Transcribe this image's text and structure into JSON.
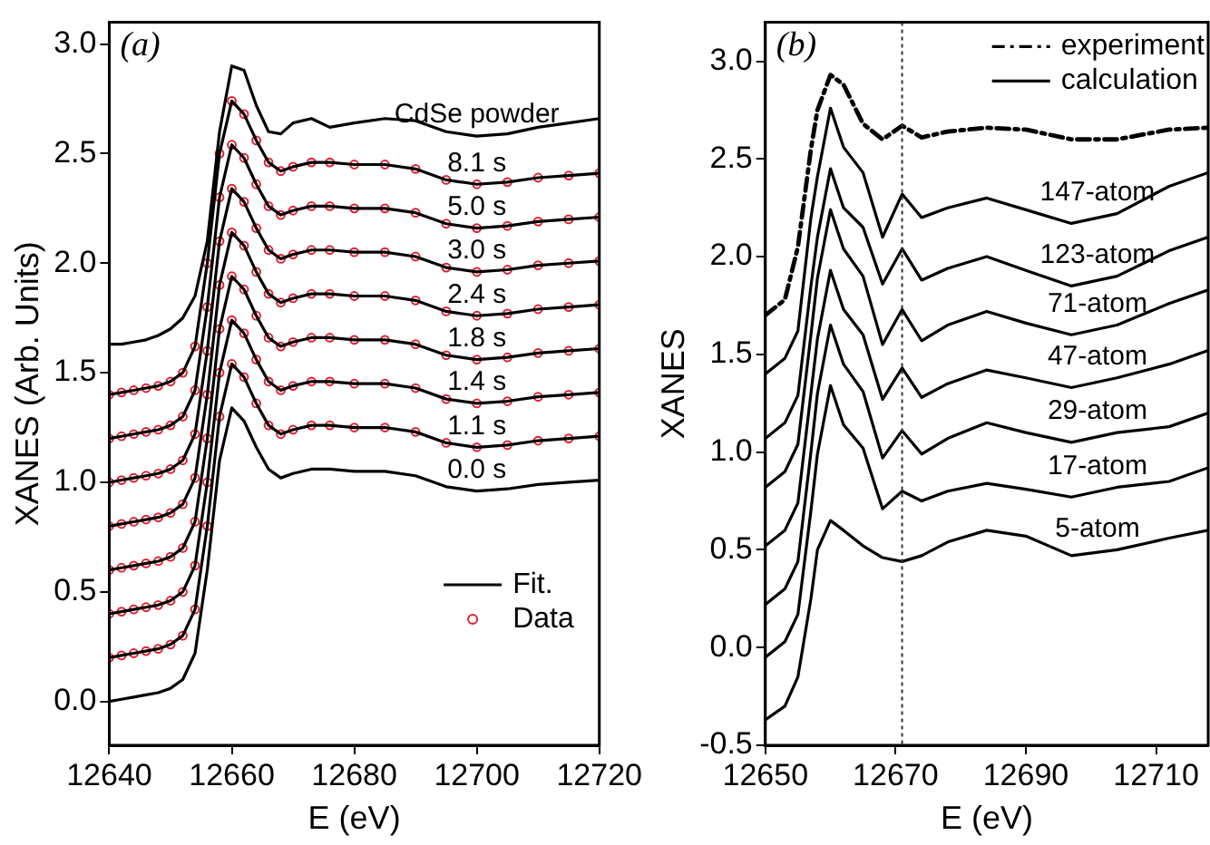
{
  "chart_data": [
    {
      "type": "line",
      "xlabel": "E (eV)",
      "ylabel": "XANES (Arb. Units)",
      "legend": "bottom right",
      "xlim": [
        12640,
        12720
      ],
      "xticks": [
        12640,
        12660,
        12680,
        12700,
        12720
      ],
      "ylim": [
        -0.2,
        3.1
      ],
      "yticks": [
        {
          "value": 0,
          "label": "0.0"
        },
        {
          "value": 0.5,
          "label": "0.5"
        },
        {
          "value": 1,
          "label": "1.0"
        },
        {
          "value": 1.5,
          "label": "1.5"
        },
        {
          "value": 2,
          "label": "2.0"
        },
        {
          "value": 2.5,
          "label": "2.5"
        },
        {
          "value": 3,
          "label": "3.0"
        }
      ],
      "x": [
        12640,
        12642,
        12644,
        12646,
        12648,
        12650,
        12652,
        12654,
        12656,
        12658,
        12660,
        12662,
        12664,
        12666,
        12668,
        12670,
        12673,
        12676,
        12680,
        12685,
        12690,
        12695,
        12700,
        12705,
        12710,
        12715,
        12720
      ],
      "series": [
        {
          "color": "#000000",
          "marker": "none",
          "values": [
            1.63,
            1.63,
            1.64,
            1.65,
            1.67,
            1.7,
            1.75,
            1.85,
            2.1,
            2.6,
            2.9,
            2.88,
            2.72,
            2.6,
            2.59,
            2.64,
            2.66,
            2.62,
            2.64,
            2.66,
            2.65,
            2.6,
            2.58,
            2.59,
            2.62,
            2.64,
            2.66
          ]
        },
        {
          "name": "Fit.",
          "color": "#000000",
          "marker": "none",
          "x": [
            12640,
            12642,
            12644,
            12646,
            12648,
            12650,
            12652,
            12654,
            12656,
            12658,
            12660,
            12662,
            12664,
            12666,
            12668,
            12670,
            12673,
            12676,
            12680,
            12685,
            12690,
            12695,
            12700,
            12705,
            12710,
            12715,
            12720,
            12640,
            12642,
            12644,
            12646,
            12648,
            12650,
            12652,
            12654,
            12656,
            12658,
            12660,
            12662,
            12664,
            12666,
            12668,
            12670,
            12673,
            12676,
            12680,
            12685,
            12690,
            12695,
            12700,
            12705,
            12710,
            12715,
            12720,
            12640,
            12642,
            12644,
            12646,
            12648,
            12650,
            12652,
            12654,
            12656,
            12658,
            12660,
            12662,
            12664,
            12666,
            12668,
            12670,
            12673,
            12676,
            12680,
            12685,
            12690,
            12695,
            12700,
            12705,
            12710,
            12715,
            12720,
            12640,
            12642,
            12644,
            12646,
            12648,
            12650,
            12652,
            12654,
            12656,
            12658,
            12660,
            12662,
            12664,
            12666,
            12668,
            12670,
            12673,
            12676,
            12680,
            12685,
            12690,
            12695,
            12700,
            12705,
            12710,
            12715,
            12720,
            12640,
            12642,
            12644,
            12646,
            12648,
            12650,
            12652,
            12654,
            12656,
            12658,
            12660,
            12662,
            12664,
            12666,
            12668,
            12670,
            12673,
            12676,
            12680,
            12685,
            12690,
            12695,
            12700,
            12705,
            12710,
            12715,
            12720,
            12640,
            12642,
            12644,
            12646,
            12648,
            12650,
            12652,
            12654,
            12656,
            12658,
            12660,
            12662,
            12664,
            12666,
            12668,
            12670,
            12673,
            12676,
            12680,
            12685,
            12690,
            12695,
            12700,
            12705,
            12710,
            12715,
            12720,
            12640,
            12642,
            12644,
            12646,
            12648,
            12650,
            12652,
            12654,
            12656,
            12658,
            12660,
            12662,
            12664,
            12666,
            12668,
            12670,
            12673,
            12676,
            12680,
            12685,
            12690,
            12695,
            12700,
            12705,
            12710,
            12715,
            12720,
            12640,
            12642,
            12644,
            12646,
            12648,
            12650,
            12652,
            12654,
            12656,
            12658,
            12660,
            12662,
            12664,
            12666,
            12668,
            12670,
            12673,
            12676,
            12680,
            12685,
            12690,
            12695,
            12700,
            12705,
            12710,
            12715,
            12720
          ],
          "values": [
            1.4,
            1.41,
            1.42,
            1.43,
            1.44,
            1.46,
            1.5,
            1.62,
            2.0,
            2.5,
            2.74,
            2.68,
            2.56,
            2.46,
            2.42,
            2.44,
            2.46,
            2.46,
            2.45,
            2.45,
            2.43,
            2.38,
            2.36,
            2.37,
            2.39,
            2.4,
            2.41,
            1.2,
            1.21,
            1.22,
            1.23,
            1.24,
            1.26,
            1.3,
            1.42,
            1.8,
            2.3,
            2.54,
            2.48,
            2.36,
            2.26,
            2.22,
            2.24,
            2.26,
            2.26,
            2.25,
            2.25,
            2.23,
            2.18,
            2.16,
            2.17,
            2.19,
            2.2,
            2.21,
            1.0,
            1.01,
            1.02,
            1.03,
            1.04,
            1.06,
            1.1,
            1.22,
            1.6,
            2.1,
            2.34,
            2.28,
            2.16,
            2.06,
            2.02,
            2.04,
            2.06,
            2.06,
            2.05,
            2.05,
            2.03,
            1.98,
            1.96,
            1.97,
            1.99,
            2.0,
            2.01,
            0.8,
            0.81,
            0.82,
            0.83,
            0.84,
            0.86,
            0.9,
            1.02,
            1.4,
            1.9,
            2.14,
            2.08,
            1.96,
            1.86,
            1.82,
            1.84,
            1.86,
            1.86,
            1.85,
            1.85,
            1.83,
            1.78,
            1.76,
            1.77,
            1.79,
            1.8,
            1.81,
            0.6,
            0.61,
            0.62,
            0.63,
            0.64,
            0.66,
            0.7,
            0.82,
            1.2,
            1.7,
            1.94,
            1.88,
            1.76,
            1.66,
            1.62,
            1.64,
            1.66,
            1.66,
            1.65,
            1.65,
            1.63,
            1.58,
            1.56,
            1.57,
            1.59,
            1.6,
            1.61,
            0.4,
            0.41,
            0.42,
            0.43,
            0.44,
            0.46,
            0.5,
            0.62,
            1.0,
            1.5,
            1.74,
            1.68,
            1.56,
            1.46,
            1.42,
            1.44,
            1.46,
            1.46,
            1.45,
            1.45,
            1.43,
            1.38,
            1.36,
            1.37,
            1.39,
            1.4,
            1.41,
            0.2,
            0.21,
            0.22,
            0.23,
            0.24,
            0.26,
            0.3,
            0.42,
            0.8,
            1.3,
            1.54,
            1.48,
            1.36,
            1.26,
            1.22,
            1.24,
            1.26,
            1.26,
            1.25,
            1.25,
            1.23,
            1.18,
            1.16,
            1.17,
            1.19,
            1.2,
            1.21,
            0,
            0.01,
            0.02,
            0.03,
            0.04,
            0.06,
            0.1,
            0.22,
            0.6,
            1.1,
            1.34,
            1.28,
            1.16,
            1.06,
            1.02,
            1.04,
            1.06,
            1.06,
            1.05,
            1.05,
            1.03,
            0.98,
            0.96,
            0.97,
            0.99,
            1.0,
            1.01
          ]
        },
        {
          "name": "Data",
          "type": "scatter",
          "color": "#e0202e",
          "marker": "circle",
          "x": [
            12640,
            12642,
            12644,
            12646,
            12648,
            12650,
            12652,
            12654,
            12656,
            12658,
            12660,
            12662,
            12664,
            12666,
            12668,
            12670,
            12673,
            12676,
            12680,
            12685,
            12690,
            12695,
            12700,
            12705,
            12710,
            12715,
            12720,
            12640,
            12642,
            12644,
            12646,
            12648,
            12650,
            12652,
            12654,
            12656,
            12658,
            12660,
            12662,
            12664,
            12666,
            12668,
            12670,
            12673,
            12676,
            12680,
            12685,
            12690,
            12695,
            12700,
            12705,
            12710,
            12715,
            12720,
            12640,
            12642,
            12644,
            12646,
            12648,
            12650,
            12652,
            12654,
            12656,
            12658,
            12660,
            12662,
            12664,
            12666,
            12668,
            12670,
            12673,
            12676,
            12680,
            12685,
            12690,
            12695,
            12700,
            12705,
            12710,
            12715,
            12720,
            12640,
            12642,
            12644,
            12646,
            12648,
            12650,
            12652,
            12654,
            12656,
            12658,
            12660,
            12662,
            12664,
            12666,
            12668,
            12670,
            12673,
            12676,
            12680,
            12685,
            12690,
            12695,
            12700,
            12705,
            12710,
            12715,
            12720,
            12640,
            12642,
            12644,
            12646,
            12648,
            12650,
            12652,
            12654,
            12656,
            12658,
            12660,
            12662,
            12664,
            12666,
            12668,
            12670,
            12673,
            12676,
            12680,
            12685,
            12690,
            12695,
            12700,
            12705,
            12710,
            12715,
            12720,
            12640,
            12642,
            12644,
            12646,
            12648,
            12650,
            12652,
            12654,
            12656,
            12658,
            12660,
            12662,
            12664,
            12666,
            12668,
            12670,
            12673,
            12676,
            12680,
            12685,
            12690,
            12695,
            12700,
            12705,
            12710,
            12715,
            12720,
            12640,
            12642,
            12644,
            12646,
            12648,
            12650,
            12652,
            12654,
            12656,
            12658,
            12660,
            12662,
            12664,
            12666,
            12668,
            12670,
            12673,
            12676,
            12680,
            12685,
            12690,
            12695,
            12700,
            12705,
            12710,
            12715,
            12720
          ],
          "values": [
            1.4,
            1.41,
            1.42,
            1.43,
            1.44,
            1.46,
            1.5,
            1.62,
            2.0,
            2.5,
            2.74,
            2.68,
            2.56,
            2.46,
            2.42,
            2.44,
            2.46,
            2.46,
            2.45,
            2.45,
            2.43,
            2.38,
            2.36,
            2.37,
            2.39,
            2.4,
            2.41,
            1.2,
            1.21,
            1.22,
            1.23,
            1.24,
            1.26,
            1.3,
            1.42,
            1.8,
            2.3,
            2.54,
            2.48,
            2.36,
            2.26,
            2.22,
            2.24,
            2.26,
            2.26,
            2.25,
            2.25,
            2.23,
            2.18,
            2.16,
            2.17,
            2.19,
            2.2,
            2.21,
            1.0,
            1.01,
            1.02,
            1.03,
            1.04,
            1.06,
            1.1,
            1.22,
            1.6,
            2.1,
            2.34,
            2.28,
            2.16,
            2.06,
            2.02,
            2.04,
            2.06,
            2.06,
            2.05,
            2.05,
            2.03,
            1.98,
            1.96,
            1.97,
            1.99,
            2.0,
            2.01,
            0.8,
            0.81,
            0.82,
            0.83,
            0.84,
            0.86,
            0.9,
            1.02,
            1.4,
            1.9,
            2.14,
            2.08,
            1.96,
            1.86,
            1.82,
            1.84,
            1.86,
            1.86,
            1.85,
            1.85,
            1.83,
            1.78,
            1.76,
            1.77,
            1.79,
            1.8,
            1.81,
            0.6,
            0.61,
            0.62,
            0.63,
            0.64,
            0.66,
            0.7,
            0.82,
            1.2,
            1.7,
            1.94,
            1.88,
            1.76,
            1.66,
            1.62,
            1.64,
            1.66,
            1.66,
            1.65,
            1.65,
            1.63,
            1.58,
            1.56,
            1.57,
            1.59,
            1.6,
            1.61,
            0.4,
            0.41,
            0.42,
            0.43,
            0.44,
            0.46,
            0.5,
            0.62,
            1.0,
            1.5,
            1.74,
            1.68,
            1.56,
            1.46,
            1.42,
            1.44,
            1.46,
            1.46,
            1.45,
            1.45,
            1.43,
            1.38,
            1.36,
            1.37,
            1.39,
            1.4,
            1.41,
            0.2,
            0.21,
            0.22,
            0.23,
            0.24,
            0.26,
            0.3,
            0.42,
            0.8,
            1.3,
            1.54,
            1.48,
            1.36,
            1.26,
            1.22,
            1.24,
            1.26,
            1.26,
            1.25,
            1.25,
            1.23,
            1.18,
            1.16,
            1.17,
            1.19,
            1.2,
            1.21
          ]
        }
      ],
      "annotations": [
        "(a)",
        "CdSe powder",
        "8.1 s",
        "5.0 s",
        "3.0 s",
        "2.4 s",
        "1.8 s",
        "1.4 s",
        "1.1 s",
        "0.0 s"
      ]
    },
    {
      "type": "line",
      "xlabel": "E (eV)",
      "ylabel": "XANES",
      "legend": "top right",
      "xlim": [
        12650,
        12718
      ],
      "xticks": [
        12650,
        12670,
        12690,
        12710
      ],
      "ylim": [
        -0.5,
        3.2
      ],
      "yticks": [
        {
          "value": -0.5,
          "label": "-0.5"
        },
        {
          "value": 0,
          "label": "0.0"
        },
        {
          "value": 0.5,
          "label": "0.5"
        },
        {
          "value": 1,
          "label": "1.0"
        },
        {
          "value": 1.5,
          "label": "1.5"
        },
        {
          "value": 2,
          "label": "2.0"
        },
        {
          "value": 2.5,
          "label": "2.5"
        },
        {
          "value": 3,
          "label": "3.0"
        }
      ],
      "x": [
        12650,
        12653,
        12655,
        12657,
        12658,
        12660,
        12662,
        12665,
        12668,
        12671,
        12674,
        12678,
        12684,
        12690,
        12697,
        12704,
        12712,
        12718
      ],
      "series": [
        {
          "name": "experiment",
          "color": "#000000",
          "marker": "none",
          "line_style": "dashed",
          "values": [
            1.7,
            1.78,
            2.05,
            2.55,
            2.75,
            2.93,
            2.88,
            2.68,
            2.6,
            2.67,
            2.61,
            2.64,
            2.66,
            2.65,
            2.6,
            2.6,
            2.65,
            2.66
          ]
        },
        {
          "name": "calculation",
          "color": "#000000",
          "marker": "none",
          "x": [
            12650,
            12653,
            12655,
            12657,
            12658,
            12660,
            12662,
            12665,
            12668,
            12671,
            12674,
            12678,
            12684,
            12690,
            12697,
            12704,
            12712,
            12718,
            12650,
            12653,
            12655,
            12657,
            12658,
            12660,
            12662,
            12665,
            12668,
            12671,
            12674,
            12678,
            12684,
            12690,
            12697,
            12704,
            12712,
            12718,
            12650,
            12653,
            12655,
            12657,
            12658,
            12660,
            12662,
            12665,
            12668,
            12671,
            12674,
            12678,
            12684,
            12690,
            12697,
            12704,
            12712,
            12718,
            12650,
            12653,
            12655,
            12657,
            12658,
            12660,
            12662,
            12665,
            12668,
            12671,
            12674,
            12678,
            12684,
            12690,
            12697,
            12704,
            12712,
            12718,
            12650,
            12653,
            12655,
            12657,
            12658,
            12660,
            12662,
            12665,
            12668,
            12671,
            12674,
            12678,
            12684,
            12690,
            12697,
            12704,
            12712,
            12718,
            12650,
            12653,
            12655,
            12657,
            12658,
            12660,
            12662,
            12665,
            12668,
            12671,
            12674,
            12678,
            12684,
            12690,
            12697,
            12704,
            12712,
            12718,
            12650,
            12653,
            12655,
            12657,
            12658,
            12660,
            12662,
            12665,
            12668,
            12671,
            12674,
            12678,
            12684,
            12690,
            12697,
            12704,
            12712,
            12718
          ],
          "values": [
            1.4,
            1.48,
            1.62,
            2.2,
            2.41,
            2.76,
            2.56,
            2.43,
            2.1,
            2.32,
            2.2,
            2.25,
            2.3,
            2.24,
            2.17,
            2.22,
            2.36,
            2.43,
            1.07,
            1.15,
            1.29,
            1.85,
            2.1,
            2.45,
            2.25,
            2.15,
            1.86,
            2.04,
            1.88,
            1.94,
            2.0,
            1.93,
            1.85,
            1.9,
            2.03,
            2.1,
            0.82,
            0.9,
            1.04,
            1.6,
            1.89,
            2.24,
            2.04,
            1.9,
            1.55,
            1.73,
            1.57,
            1.65,
            1.72,
            1.66,
            1.6,
            1.65,
            1.76,
            1.83,
            0.52,
            0.6,
            0.74,
            1.3,
            1.58,
            1.93,
            1.73,
            1.6,
            1.27,
            1.43,
            1.28,
            1.35,
            1.42,
            1.38,
            1.33,
            1.38,
            1.45,
            1.52,
            0.22,
            0.3,
            0.44,
            1.0,
            1.3,
            1.65,
            1.45,
            1.31,
            0.97,
            1.11,
            0.99,
            1.07,
            1.15,
            1.1,
            1.05,
            1.1,
            1.13,
            1.2,
            -0.05,
            0.03,
            0.17,
            0.7,
            0.99,
            1.34,
            1.14,
            1.02,
            0.71,
            0.8,
            0.75,
            0.8,
            0.84,
            0.81,
            0.77,
            0.82,
            0.85,
            0.92,
            -0.37,
            -0.3,
            -0.15,
            0.25,
            0.5,
            0.65,
            0.6,
            0.52,
            0.46,
            0.44,
            0.47,
            0.54,
            0.6,
            0.57,
            0.47,
            0.5,
            0.56,
            0.6
          ]
        }
      ],
      "ref_lines": [
        {
          "axis": "x",
          "value": 12671,
          "line_style": "dotted",
          "color": "#333333"
        }
      ],
      "annotations": [
        "(b)",
        "147-atom",
        "123-atom",
        "71-atom",
        "47-atom",
        "29-atom",
        "17-atom",
        "5-atom"
      ]
    }
  ]
}
